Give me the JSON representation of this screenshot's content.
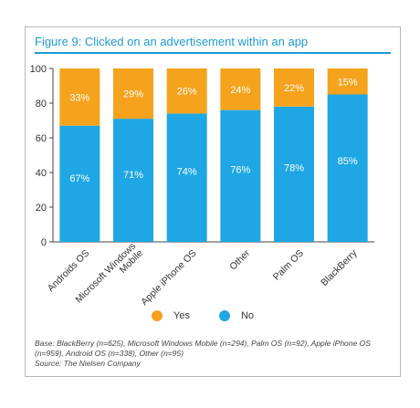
{
  "figure": {
    "title": "Figure 9: Clicked on an advertisement within an app",
    "base_note": "Base: BlackBerry (n=625), Microsoft Windows Mobile (n=294), Palm OS (n=92), Apple iPhone OS (n=959), Android OS (n=338), Other (n=95)",
    "source_note": "Source: The Nielsen Company"
  },
  "colors": {
    "yes": "#f5a21d",
    "no": "#1ea7e4",
    "axis": "#444444"
  },
  "chart_data": {
    "type": "bar",
    "stacked": true,
    "categories": [
      "Androids OS",
      "Microsoft Windows Mobile",
      "Apple iPhone OS",
      "Other",
      "Palm OS",
      "BlackBerry"
    ],
    "series": [
      {
        "name": "No",
        "values": [
          67,
          71,
          74,
          76,
          78,
          85
        ]
      },
      {
        "name": "Yes",
        "values": [
          33,
          29,
          26,
          24,
          22,
          15
        ]
      }
    ],
    "value_labels": {
      "No": [
        "67%",
        "71%",
        "74%",
        "76%",
        "78%",
        "85%"
      ],
      "Yes": [
        "33%",
        "29%",
        "26%",
        "24%",
        "22%",
        "15%"
      ]
    },
    "yticks": [
      0,
      20,
      40,
      60,
      80,
      100
    ],
    "ylim": [
      0,
      100
    ],
    "legend": {
      "position": "bottom",
      "items": [
        "Yes",
        "No"
      ]
    },
    "grid": false
  }
}
